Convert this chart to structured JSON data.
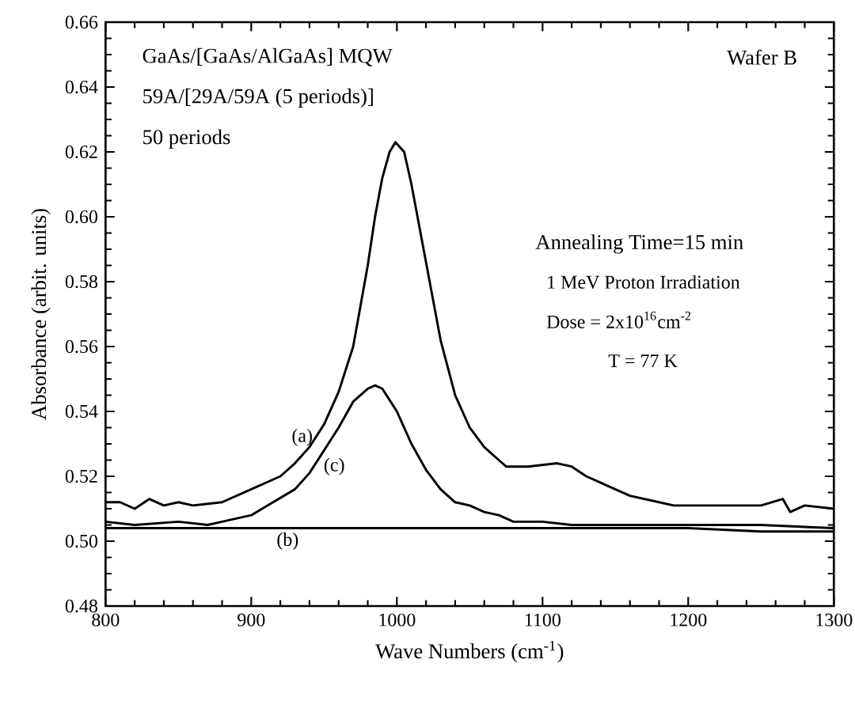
{
  "chart_data": {
    "type": "line",
    "xlabel": "Wave Numbers (cm$^{-1}$)",
    "ylabel": "Absorbance (arbit. units)",
    "xlim": [
      800,
      1300
    ],
    "ylim": [
      0.48,
      0.66
    ],
    "xticks": [
      800,
      900,
      1000,
      1100,
      1200,
      1300
    ],
    "yticks": [
      0.48,
      {
        "value": 0.5,
        "label": "0.50"
      },
      0.52,
      0.54,
      0.56,
      0.58,
      {
        "value": 0.6,
        "label": "0.60"
      },
      0.62,
      0.64,
      0.66
    ],
    "grid": false,
    "marker": "none",
    "line_style": "solid",
    "series": [
      {
        "color": "#000000",
        "x": [
          800,
          810,
          820,
          830,
          840,
          850,
          860,
          880,
          900,
          920,
          930,
          940,
          950,
          960,
          970,
          980,
          985,
          990,
          995,
          999,
          1005,
          1010,
          1020,
          1030,
          1040,
          1050,
          1060,
          1070,
          1075,
          1090,
          1110,
          1120,
          1130,
          1140,
          1160,
          1180,
          1190,
          1220,
          1250,
          1265,
          1270,
          1280,
          1300
        ],
        "values": [
          0.512,
          0.512,
          0.51,
          0.513,
          0.511,
          0.512,
          0.511,
          0.512,
          0.516,
          0.52,
          0.524,
          0.529,
          0.536,
          0.546,
          0.56,
          0.585,
          0.6,
          0.612,
          0.62,
          0.623,
          0.62,
          0.61,
          0.586,
          0.562,
          0.545,
          0.535,
          0.529,
          0.525,
          0.523,
          0.523,
          0.524,
          0.523,
          0.52,
          0.518,
          0.514,
          0.512,
          0.511,
          0.511,
          0.511,
          0.513,
          0.509,
          0.511,
          0.51
        ]
      },
      {
        "color": "#000000",
        "x": [
          800,
          830,
          850,
          870,
          880,
          900,
          920,
          930,
          940,
          950,
          960,
          970,
          980,
          985,
          990,
          1000,
          1010,
          1020,
          1030,
          1040,
          1050,
          1060,
          1070,
          1080,
          1100,
          1120,
          1150,
          1200,
          1250,
          1300
        ],
        "values": [
          0.504,
          0.504,
          0.504,
          0.504,
          0.504,
          0.504,
          0.504,
          0.504,
          0.504,
          0.504,
          0.504,
          0.504,
          0.504,
          0.504,
          0.504,
          0.504,
          0.504,
          0.504,
          0.504,
          0.504,
          0.504,
          0.504,
          0.504,
          0.504,
          0.504,
          0.504,
          0.504,
          0.504,
          0.503,
          0.503
        ]
      },
      {
        "color": "#000000",
        "x": [
          800,
          820,
          850,
          870,
          880,
          900,
          915,
          930,
          940,
          950,
          960,
          970,
          980,
          985,
          990,
          1000,
          1010,
          1020,
          1030,
          1040,
          1050,
          1060,
          1070,
          1080,
          1100,
          1120,
          1150,
          1200,
          1250,
          1300
        ],
        "values": [
          0.506,
          0.505,
          0.506,
          0.505,
          0.506,
          0.508,
          0.512,
          0.516,
          0.521,
          0.528,
          0.535,
          0.543,
          0.547,
          0.548,
          0.547,
          0.54,
          0.53,
          0.522,
          0.516,
          0.512,
          0.511,
          0.509,
          0.508,
          0.506,
          0.506,
          0.505,
          0.505,
          0.505,
          0.505,
          0.504
        ]
      }
    ],
    "annotations": [
      "(a)",
      "(b)",
      "(c)",
      "GaAs/[GaAs/AlGaAs] MQW",
      "59A/[29A/59A (5 periods)]",
      "50 periods",
      "Wafer B",
      "Annealing Time=15 min",
      "1 MeV Proton Irradiation",
      "Dose = 2x10$^{16}$cm$^{-2}$",
      "T = 77 K"
    ]
  }
}
